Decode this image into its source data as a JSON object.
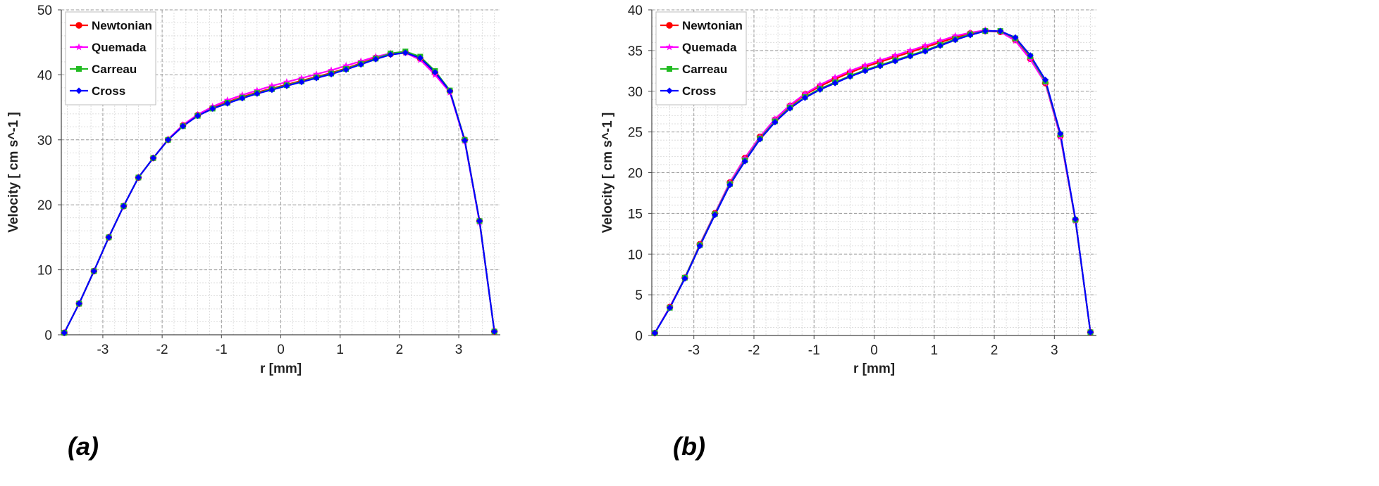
{
  "chart_data": [
    {
      "panel_label": "(a)",
      "type": "line",
      "xlabel": "r [mm]",
      "ylabel": "Velocity [ cm s^-1 ]",
      "xlim": [
        -3.7,
        3.7
      ],
      "ylim": [
        0,
        50
      ],
      "xticks": [
        -3,
        -2,
        -1,
        0,
        1,
        2,
        3
      ],
      "yticks": [
        0,
        10,
        20,
        30,
        40,
        50
      ],
      "grid": true,
      "legend_position": "top-left",
      "x": [
        -3.65,
        -3.4,
        -3.15,
        -2.9,
        -2.65,
        -2.4,
        -2.15,
        -1.9,
        -1.65,
        -1.4,
        -1.15,
        -0.9,
        -0.65,
        -0.4,
        -0.15,
        0.1,
        0.35,
        0.6,
        0.85,
        1.1,
        1.35,
        1.6,
        1.85,
        2.1,
        2.35,
        2.6,
        2.85,
        3.1,
        3.35,
        3.6
      ],
      "series": [
        {
          "name": "Newtonian",
          "color": "#ff0000",
          "marker": "circle",
          "values": [
            0.3,
            4.8,
            9.8,
            15.0,
            19.8,
            24.2,
            27.2,
            30.0,
            32.2,
            33.8,
            34.9,
            35.8,
            36.6,
            37.3,
            37.9,
            38.5,
            39.1,
            39.7,
            40.3,
            41.0,
            41.8,
            42.6,
            43.2,
            43.5,
            42.5,
            40.3,
            37.5,
            30.0,
            17.5,
            0.5
          ]
        },
        {
          "name": "Quemada",
          "color": "#ff00ff",
          "marker": "star",
          "values": [
            0.3,
            4.8,
            9.8,
            15.0,
            19.8,
            24.2,
            27.2,
            30.1,
            32.3,
            33.9,
            35.1,
            36.1,
            36.9,
            37.6,
            38.3,
            38.9,
            39.5,
            40.1,
            40.7,
            41.4,
            42.1,
            42.8,
            43.3,
            43.4,
            42.3,
            40.0,
            37.3,
            29.8,
            17.3,
            0.5
          ]
        },
        {
          "name": "Carreau",
          "color": "#22bb22",
          "marker": "square",
          "values": [
            0.3,
            4.8,
            9.8,
            15.0,
            19.8,
            24.2,
            27.2,
            30.0,
            32.1,
            33.7,
            34.8,
            35.7,
            36.5,
            37.2,
            37.8,
            38.4,
            39.0,
            39.6,
            40.2,
            40.9,
            41.7,
            42.5,
            43.3,
            43.6,
            42.8,
            40.6,
            37.6,
            30.0,
            17.5,
            0.5
          ]
        },
        {
          "name": "Cross",
          "color": "#0000ff",
          "marker": "diamond",
          "values": [
            0.3,
            4.8,
            9.8,
            15.0,
            19.8,
            24.2,
            27.2,
            30.0,
            32.1,
            33.7,
            34.8,
            35.6,
            36.4,
            37.1,
            37.7,
            38.3,
            38.9,
            39.5,
            40.1,
            40.8,
            41.6,
            42.4,
            43.1,
            43.4,
            42.6,
            40.4,
            37.5,
            29.9,
            17.5,
            0.5
          ]
        }
      ]
    },
    {
      "panel_label": "(b)",
      "type": "line",
      "xlabel": "r [mm]",
      "ylabel": "Velocity [ cm s^-1 ]",
      "xlim": [
        -3.7,
        3.7
      ],
      "ylim": [
        0,
        40
      ],
      "xticks": [
        -3,
        -2,
        -1,
        0,
        1,
        2,
        3
      ],
      "yticks": [
        0,
        5,
        10,
        15,
        20,
        25,
        30,
        35,
        40
      ],
      "grid": true,
      "legend_position": "top-left",
      "x": [
        -3.65,
        -3.4,
        -3.15,
        -2.9,
        -2.65,
        -2.4,
        -2.15,
        -1.9,
        -1.65,
        -1.4,
        -1.15,
        -0.9,
        -0.65,
        -0.4,
        -0.15,
        0.1,
        0.35,
        0.6,
        0.85,
        1.1,
        1.35,
        1.6,
        1.85,
        2.1,
        2.35,
        2.6,
        2.85,
        3.1,
        3.35,
        3.6
      ],
      "series": [
        {
          "name": "Newtonian",
          "color": "#ff0000",
          "marker": "circle",
          "values": [
            0.3,
            3.5,
            7.1,
            11.2,
            15.0,
            18.8,
            21.8,
            24.4,
            26.5,
            28.2,
            29.6,
            30.6,
            31.5,
            32.3,
            33.0,
            33.6,
            34.2,
            34.8,
            35.4,
            36.0,
            36.6,
            37.1,
            37.4,
            37.3,
            36.3,
            34.0,
            31.0,
            24.5,
            14.2,
            0.4
          ]
        },
        {
          "name": "Quemada",
          "color": "#ff00ff",
          "marker": "star",
          "values": [
            0.3,
            3.5,
            7.1,
            11.2,
            15.0,
            18.8,
            21.8,
            24.4,
            26.6,
            28.3,
            29.7,
            30.8,
            31.7,
            32.5,
            33.2,
            33.8,
            34.4,
            35.0,
            35.6,
            36.2,
            36.8,
            37.2,
            37.5,
            37.3,
            36.2,
            33.9,
            31.0,
            24.4,
            14.1,
            0.4
          ]
        },
        {
          "name": "Carreau",
          "color": "#22bb22",
          "marker": "square",
          "values": [
            0.3,
            3.4,
            7.1,
            11.1,
            14.9,
            18.6,
            21.5,
            24.2,
            26.3,
            28.0,
            29.3,
            30.3,
            31.1,
            31.9,
            32.6,
            33.2,
            33.8,
            34.4,
            35.0,
            35.7,
            36.4,
            37.0,
            37.4,
            37.4,
            36.5,
            34.3,
            31.2,
            24.7,
            14.2,
            0.4
          ]
        },
        {
          "name": "Cross",
          "color": "#0000ff",
          "marker": "diamond",
          "values": [
            0.3,
            3.4,
            7.0,
            11.0,
            14.8,
            18.5,
            21.4,
            24.1,
            26.2,
            27.9,
            29.2,
            30.2,
            31.0,
            31.8,
            32.5,
            33.1,
            33.7,
            34.3,
            34.9,
            35.6,
            36.3,
            36.9,
            37.4,
            37.4,
            36.6,
            34.4,
            31.4,
            24.8,
            14.3,
            0.4
          ]
        }
      ]
    }
  ]
}
